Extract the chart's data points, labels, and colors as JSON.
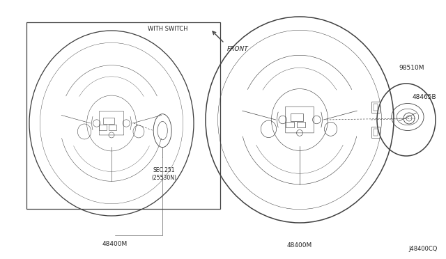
{
  "bg_color": "#ffffff",
  "line_color": "#404040",
  "label_color": "#222222",
  "diagram_code": "J48400CQ",
  "front_label": "FRONT",
  "with_switch_label": "WITH SWITCH",
  "part_labels": {
    "48400M_left": "48400M",
    "48400M_right": "48400M",
    "48465B": "48465B",
    "98510M": "98510M",
    "sec_ref": "SEC.251\n(25530N)"
  },
  "lw_rim": 1.1,
  "lw_detail": 0.6,
  "lw_thin": 0.45,
  "fontsize_label": 6.5,
  "fontsize_small": 5.5
}
